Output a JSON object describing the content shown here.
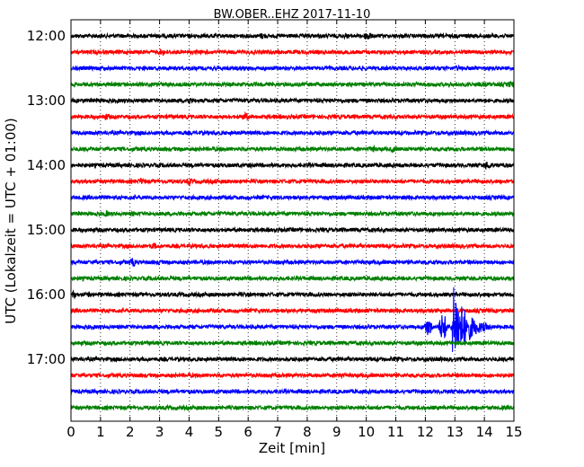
{
  "chart_data": {
    "type": "line",
    "title": "BW.OBER..EHZ 2017-11-10",
    "xlabel": "Zeit  [min]",
    "ylabel": "UTC (Lokalzeit = UTC + 01:00)",
    "xlim": [
      0,
      15
    ],
    "x_ticks": [
      "0",
      "1",
      "2",
      "3",
      "4",
      "5",
      "6",
      "7",
      "8",
      "9",
      "10",
      "11",
      "12",
      "13",
      "14",
      "15"
    ],
    "y_ticks": [
      "12:00",
      "13:00",
      "14:00",
      "15:00",
      "16:00",
      "17:00"
    ],
    "grid": "vertical dotted",
    "trace_interval_min": 15,
    "trace_colors": [
      "#000000",
      "#ff0000",
      "#0000ff",
      "#008000"
    ],
    "traces": [
      {
        "start": "12:00",
        "color": "#000000",
        "events": [
          {
            "t": 6.5,
            "amp": 4
          },
          {
            "t": 9.3,
            "amp": 3
          },
          {
            "t": 10.05,
            "amp": 6
          }
        ]
      },
      {
        "start": "12:15",
        "color": "#ff0000",
        "events": [
          {
            "t": 3.1,
            "amp": 4
          }
        ]
      },
      {
        "start": "12:30",
        "color": "#0000ff",
        "events": [
          {
            "t": 13.1,
            "amp": 3
          }
        ]
      },
      {
        "start": "12:45",
        "color": "#008000",
        "events": [
          {
            "t": 5.8,
            "amp": 3
          },
          {
            "t": 14.0,
            "amp": 3
          },
          {
            "t": 14.9,
            "amp": 4
          }
        ]
      },
      {
        "start": "13:00",
        "color": "#000000",
        "events": [
          {
            "t": 0.9,
            "amp": 3
          },
          {
            "t": 4.0,
            "amp": 4
          }
        ]
      },
      {
        "start": "13:15",
        "color": "#ff0000",
        "events": [
          {
            "t": 1.2,
            "amp": 4
          },
          {
            "t": 3.3,
            "amp": 3
          },
          {
            "t": 5.9,
            "amp": 5
          }
        ]
      },
      {
        "start": "13:30",
        "color": "#0000ff",
        "events": []
      },
      {
        "start": "13:45",
        "color": "#008000",
        "events": [
          {
            "t": 10.2,
            "amp": 4
          },
          {
            "t": 10.9,
            "amp": 4
          }
        ]
      },
      {
        "start": "14:00",
        "color": "#000000",
        "events": [
          {
            "t": 6.1,
            "amp": 3
          },
          {
            "t": 14.1,
            "amp": 5
          }
        ]
      },
      {
        "start": "14:15",
        "color": "#ff0000",
        "events": [
          {
            "t": 2.4,
            "amp": 4
          },
          {
            "t": 4.0,
            "amp": 4
          },
          {
            "t": 4.9,
            "amp": 3
          }
        ]
      },
      {
        "start": "14:30",
        "color": "#0000ff",
        "events": [
          {
            "t": 1.0,
            "amp": 3
          }
        ]
      },
      {
        "start": "14:45",
        "color": "#008000",
        "events": [
          {
            "t": 1.2,
            "amp": 4
          },
          {
            "t": 2.1,
            "amp": 3
          },
          {
            "t": 5.0,
            "amp": 3
          }
        ]
      },
      {
        "start": "15:00",
        "color": "#000000",
        "events": []
      },
      {
        "start": "15:15",
        "color": "#ff0000",
        "events": [
          {
            "t": 2.8,
            "amp": 4
          }
        ]
      },
      {
        "start": "15:30",
        "color": "#0000ff",
        "events": [
          {
            "t": 2.1,
            "amp": 5
          },
          {
            "t": 3.0,
            "amp": 3
          }
        ]
      },
      {
        "start": "15:45",
        "color": "#008000",
        "events": [
          {
            "t": 14.8,
            "amp": 3
          }
        ]
      },
      {
        "start": "16:00",
        "color": "#000000",
        "events": [
          {
            "t": 0.1,
            "amp": 4
          },
          {
            "t": 0.6,
            "amp": 3
          }
        ]
      },
      {
        "start": "16:15",
        "color": "#ff0000",
        "events": []
      },
      {
        "start": "16:30",
        "color": "#0000ff",
        "events": [
          {
            "t": 12.1,
            "amp": 10
          },
          {
            "t": 12.6,
            "amp": 16
          },
          {
            "t": 12.95,
            "amp": 46
          },
          {
            "t": 13.5,
            "amp": 14
          },
          {
            "t": 14.0,
            "amp": 5
          }
        ]
      },
      {
        "start": "16:45",
        "color": "#008000",
        "events": []
      },
      {
        "start": "17:00",
        "color": "#000000",
        "events": [
          {
            "t": 11.0,
            "amp": 3
          }
        ]
      },
      {
        "start": "17:15",
        "color": "#ff0000",
        "events": [
          {
            "t": 9.1,
            "amp": 4
          }
        ]
      },
      {
        "start": "17:30",
        "color": "#0000ff",
        "events": []
      },
      {
        "start": "17:45",
        "color": "#008000",
        "events": []
      }
    ]
  }
}
